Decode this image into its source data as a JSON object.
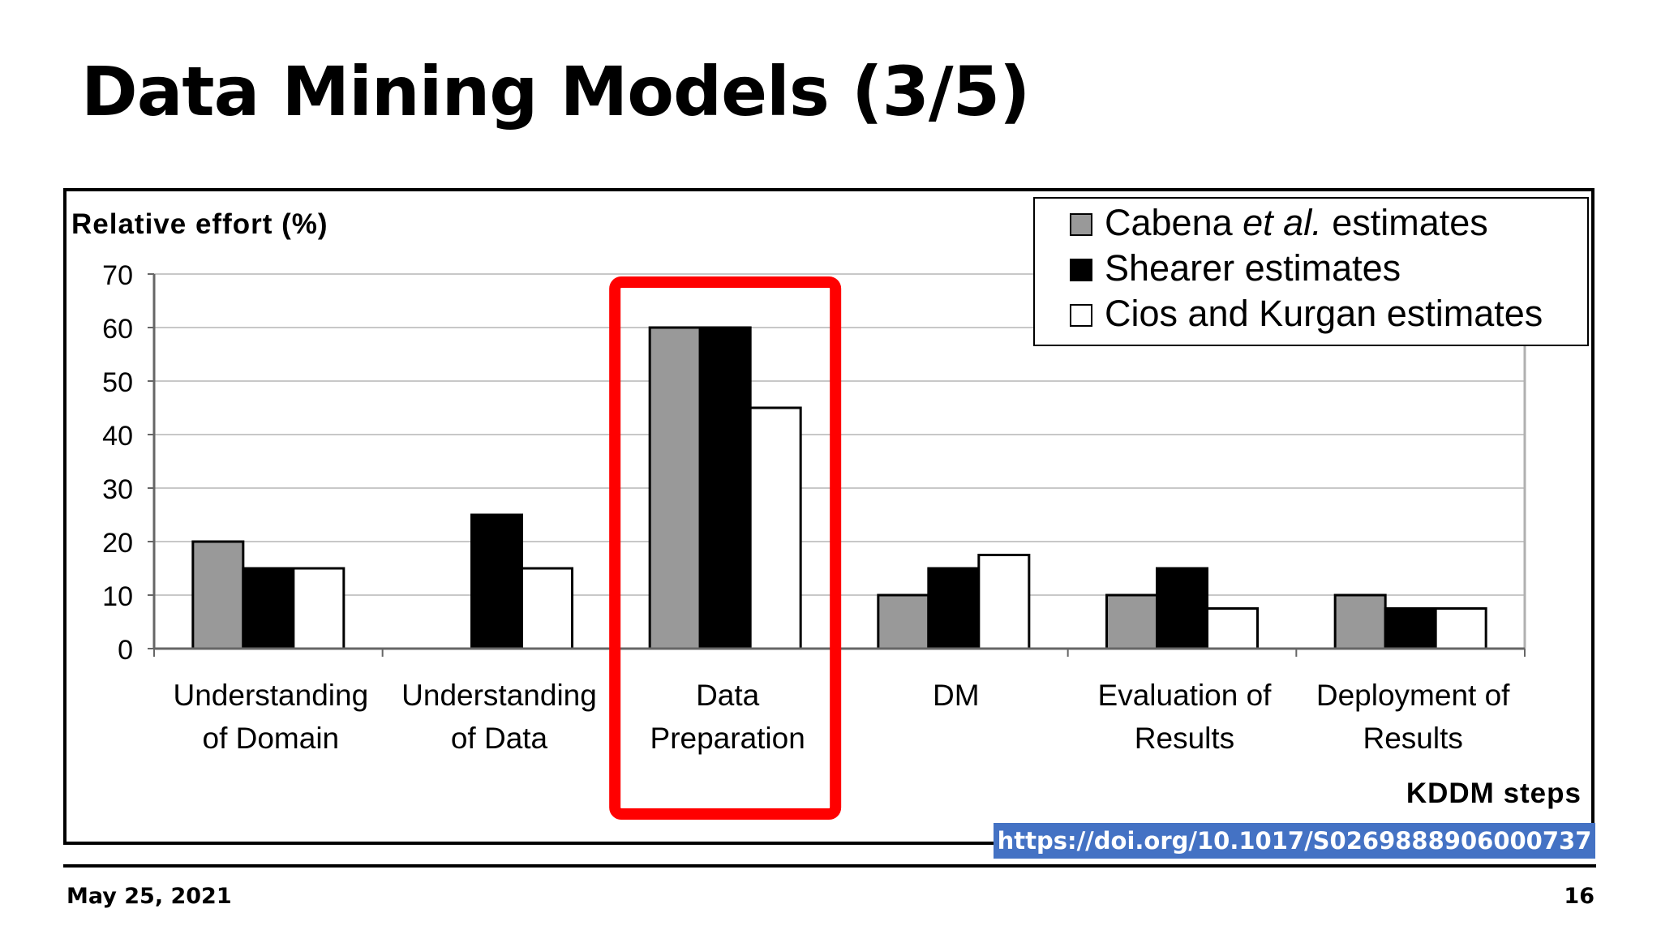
{
  "slide": {
    "title": "Data Mining Models (3/5)",
    "footer_date": "May 25, 2021",
    "page_number": "16",
    "doi_link": "https://doi.org/10.1017/S0269888906000737"
  },
  "chart_data": {
    "type": "bar",
    "ylabel": "Relative effort (%)",
    "xlabel": "KDDM steps",
    "ylim": [
      0,
      70
    ],
    "yticks": [
      0,
      10,
      20,
      30,
      40,
      50,
      60,
      70
    ],
    "grid": true,
    "legend_position": "top-right",
    "categories": [
      [
        "Understanding",
        "of Domain"
      ],
      [
        "Understanding",
        "of Data"
      ],
      [
        "Data",
        "Preparation"
      ],
      [
        "DM"
      ],
      [
        "Evaluation of",
        "Results"
      ],
      [
        "Deployment of",
        "Results"
      ]
    ],
    "series": [
      {
        "name": "Cabena et al. estimates",
        "color": "#999999",
        "values": [
          20,
          0,
          60,
          10,
          10,
          10
        ]
      },
      {
        "name": "Shearer estimates",
        "color": "#000000",
        "values": [
          15,
          25,
          60,
          15,
          15,
          7.5
        ]
      },
      {
        "name": "Cios and Kurgan estimates",
        "color": "#ffffff",
        "values": [
          15,
          15,
          45,
          17.5,
          7.5,
          7.5
        ]
      }
    ],
    "highlight": {
      "category": "Data Preparation",
      "color": "#ff0000"
    }
  }
}
